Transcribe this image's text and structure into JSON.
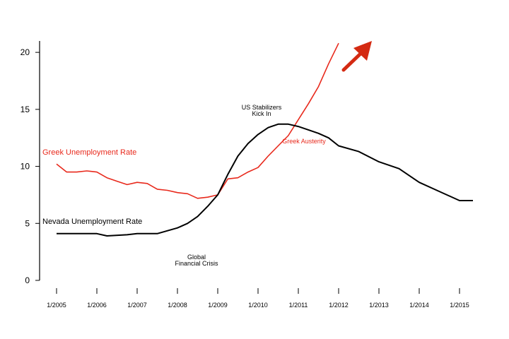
{
  "chart_data": {
    "type": "line",
    "title": "",
    "xlabel": "",
    "ylabel": "",
    "ylim": [
      0,
      21
    ],
    "xlim": [
      "2005-01",
      "2015-05"
    ],
    "grid": false,
    "colors": {
      "greek": "#e8291c",
      "nevada": "#000000",
      "arrow": "#d42a12"
    },
    "x_ticks": [
      "1/2005",
      "1/2006",
      "1/2007",
      "1/2008",
      "1/2009",
      "1/2010",
      "1/2011",
      "1/2012",
      "1/2013",
      "1/2014",
      "1/2015"
    ],
    "y_ticks": [
      "0",
      "5",
      "10",
      "15",
      "20"
    ],
    "series": [
      {
        "name": "Greek Unemployment Rate",
        "color": "#e8291c",
        "points": [
          [
            "2005-01",
            10.2
          ],
          [
            "2005-04",
            9.5
          ],
          [
            "2005-07",
            9.5
          ],
          [
            "2005-10",
            9.6
          ],
          [
            "2006-01",
            9.5
          ],
          [
            "2006-04",
            9.0
          ],
          [
            "2006-07",
            8.7
          ],
          [
            "2006-10",
            8.4
          ],
          [
            "2007-01",
            8.6
          ],
          [
            "2007-04",
            8.5
          ],
          [
            "2007-07",
            8.0
          ],
          [
            "2007-10",
            7.9
          ],
          [
            "2008-01",
            7.7
          ],
          [
            "2008-04",
            7.6
          ],
          [
            "2008-07",
            7.2
          ],
          [
            "2008-10",
            7.3
          ],
          [
            "2009-01",
            7.5
          ],
          [
            "2009-04",
            8.9
          ],
          [
            "2009-07",
            9.0
          ],
          [
            "2009-10",
            9.5
          ],
          [
            "2010-01",
            9.9
          ],
          [
            "2010-04",
            10.9
          ],
          [
            "2010-07",
            11.8
          ],
          [
            "2010-10",
            12.7
          ],
          [
            "2011-01",
            14.1
          ],
          [
            "2011-04",
            15.5
          ],
          [
            "2011-07",
            17.0
          ],
          [
            "2011-10",
            19.0
          ],
          [
            "2012-01",
            20.8
          ]
        ]
      },
      {
        "name": "Nevada Unemployment Rate",
        "color": "#000000",
        "points": [
          [
            "2005-01",
            4.1
          ],
          [
            "2005-07",
            4.1
          ],
          [
            "2006-01",
            4.1
          ],
          [
            "2006-04",
            3.9
          ],
          [
            "2006-10",
            4.0
          ],
          [
            "2007-01",
            4.1
          ],
          [
            "2007-07",
            4.1
          ],
          [
            "2008-01",
            4.6
          ],
          [
            "2008-04",
            5.0
          ],
          [
            "2008-07",
            5.6
          ],
          [
            "2008-10",
            6.5
          ],
          [
            "2009-01",
            7.5
          ],
          [
            "2009-04",
            9.3
          ],
          [
            "2009-07",
            10.9
          ],
          [
            "2009-10",
            12.0
          ],
          [
            "2010-01",
            12.8
          ],
          [
            "2010-04",
            13.4
          ],
          [
            "2010-07",
            13.7
          ],
          [
            "2010-10",
            13.7
          ],
          [
            "2011-01",
            13.5
          ],
          [
            "2011-04",
            13.2
          ],
          [
            "2011-07",
            12.9
          ],
          [
            "2011-10",
            12.5
          ],
          [
            "2012-01",
            11.8
          ],
          [
            "2012-07",
            11.3
          ],
          [
            "2013-01",
            10.4
          ],
          [
            "2013-07",
            9.8
          ],
          [
            "2014-01",
            8.6
          ],
          [
            "2014-07",
            7.8
          ],
          [
            "2015-01",
            7.0
          ],
          [
            "2015-05",
            7.0
          ]
        ]
      }
    ],
    "annotations": [
      {
        "id": "greek-label",
        "text": "Greek Unemployment Rate",
        "color": "#e8291c"
      },
      {
        "id": "nevada-label",
        "text": "Nevada Unemployment Rate",
        "color": "#000000"
      },
      {
        "id": "us-stabilizers",
        "lines": [
          "US Stabilizers",
          "Kick In"
        ],
        "color": "#000000"
      },
      {
        "id": "greek-austerity",
        "text": "Greek Austerity",
        "color": "#e8291c"
      },
      {
        "id": "global-crisis",
        "lines": [
          "Global",
          "Financial Crisis"
        ],
        "color": "#000000"
      }
    ]
  }
}
